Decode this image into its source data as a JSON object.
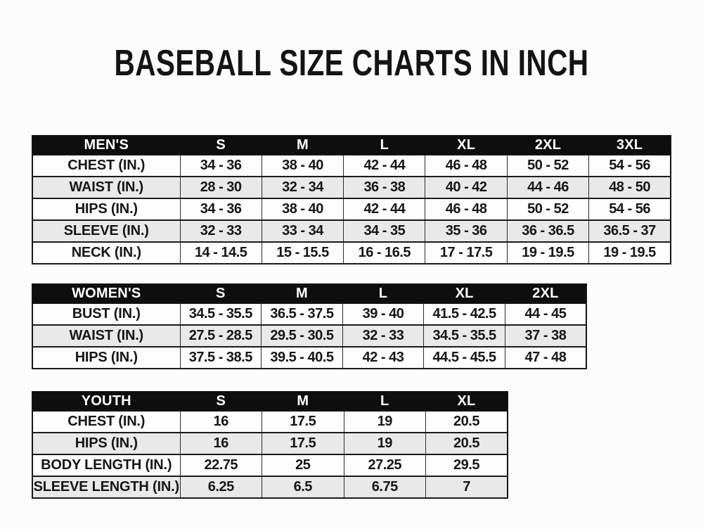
{
  "page": {
    "title": "BASEBALL SIZE CHARTS IN INCH"
  },
  "colors": {
    "page_bg": "#fcfcfc",
    "header_bg": "#0e0e0e",
    "header_text": "#ffffff",
    "row_alt_bg": "#e9e9e9",
    "row_bg": "#fdfdfd",
    "border": "#1a1a1a",
    "text": "#161616"
  },
  "chart_data": [
    {
      "type": "table",
      "name": "mens-sizes",
      "header": [
        "MEN'S",
        "S",
        "M",
        "L",
        "XL",
        "2XL",
        "3XL"
      ],
      "rows": [
        [
          "CHEST (IN.)",
          "34 - 36",
          "38 - 40",
          "42 - 44",
          "46 - 48",
          "50 - 52",
          "54 - 56"
        ],
        [
          "WAIST (IN.)",
          "28 - 30",
          "32 - 34",
          "36 - 38",
          "40 - 42",
          "44 - 46",
          "48 - 50"
        ],
        [
          "HIPS (IN.)",
          "34 - 36",
          "38 - 40",
          "42 - 44",
          "46 - 48",
          "50 - 52",
          "54 - 56"
        ],
        [
          "SLEEVE (IN.)",
          "32 - 33",
          "33 - 34",
          "34 - 35",
          "35 - 36",
          "36 - 36.5",
          "36.5 - 37"
        ],
        [
          "NECK (IN.)",
          "14 - 14.5",
          "15 - 15.5",
          "16 - 16.5",
          "17 - 17.5",
          "19 - 19.5",
          "19 - 19.5"
        ]
      ]
    },
    {
      "type": "table",
      "name": "womens-sizes",
      "header": [
        "WOMEN'S",
        "S",
        "M",
        "L",
        "XL",
        "2XL"
      ],
      "rows": [
        [
          "BUST (IN.)",
          "34.5 - 35.5",
          "36.5 - 37.5",
          "39 - 40",
          "41.5 - 42.5",
          "44 - 45"
        ],
        [
          "WAIST (IN.)",
          "27.5 - 28.5",
          "29.5 - 30.5",
          "32 - 33",
          "34.5 - 35.5",
          "37 - 38"
        ],
        [
          "HIPS (IN.)",
          "37.5 - 38.5",
          "39.5 - 40.5",
          "42 - 43",
          "44.5 - 45.5",
          "47 - 48"
        ]
      ]
    },
    {
      "type": "table",
      "name": "youth-sizes",
      "header": [
        "YOUTH",
        "S",
        "M",
        "L",
        "XL"
      ],
      "rows": [
        [
          "CHEST (IN.)",
          "16",
          "17.5",
          "19",
          "20.5"
        ],
        [
          "HIPS (IN.)",
          "16",
          "17.5",
          "19",
          "20.5"
        ],
        [
          "BODY LENGTH (IN.)",
          "22.75",
          "25",
          "27.25",
          "29.5"
        ],
        [
          "SLEEVE LENGTH (IN.)",
          "6.25",
          "6.5",
          "6.75",
          "7"
        ]
      ]
    }
  ]
}
